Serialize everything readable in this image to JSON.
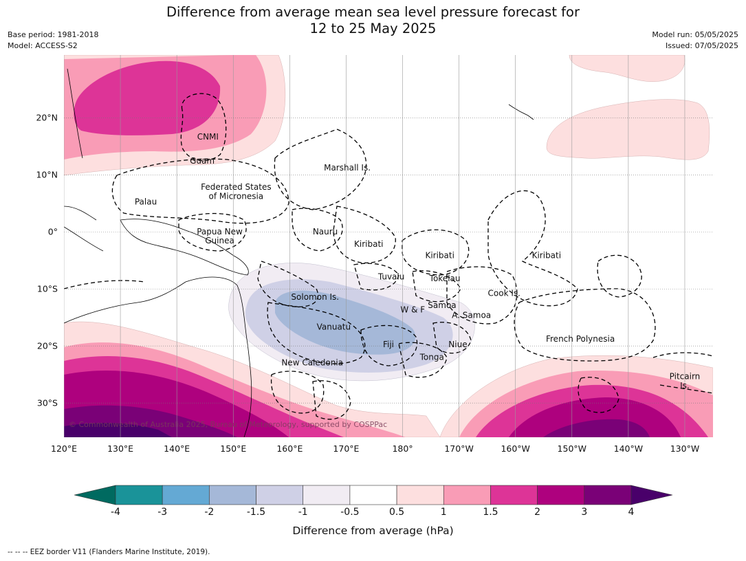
{
  "title": {
    "line1": "Difference from average mean sea level pressure forecast for",
    "line2": "12 to 25 May 2025"
  },
  "meta_left": {
    "base_period": "Base period: 1981-2018",
    "model": "Model: ACCESS-S2"
  },
  "meta_right": {
    "model_run": "Model run: 05/05/2025",
    "issued": "Issued: 07/05/2025"
  },
  "map_data": {
    "projection": "equirectangular, Pacific-centred",
    "lon_range": [
      120,
      235
    ],
    "lat_range": [
      -36,
      31
    ],
    "lon_ticks": [
      "120°E",
      "130°E",
      "140°E",
      "150°E",
      "160°E",
      "170°E",
      "180°",
      "170°W",
      "160°W",
      "150°W",
      "140°W",
      "130°W"
    ],
    "lat_ticks": [
      "20°N",
      "10°N",
      "0°",
      "10°S",
      "20°S",
      "30°S"
    ],
    "grid": true,
    "region_labels": [
      {
        "name": "CNMI",
        "lon": 145.5,
        "lat": 16.6
      },
      {
        "name": "Guam",
        "lon": 144.5,
        "lat": 12.4
      },
      {
        "name": "Marshall Is.",
        "lon": 170.2,
        "lat": 11.2
      },
      {
        "name": "Federated States",
        "lon": 150.5,
        "lat": 7.8
      },
      {
        "name": "of Micronesia",
        "lon": 150.5,
        "lat": 6.2
      },
      {
        "name": "Palau",
        "lon": 134.5,
        "lat": 5.2
      },
      {
        "name": "Papua New",
        "lon": 147.6,
        "lat": 0.0
      },
      {
        "name": "Guinea",
        "lon": 147.6,
        "lat": -1.6
      },
      {
        "name": "Nauru",
        "lon": 166.3,
        "lat": 0.0
      },
      {
        "name": "Kiribati",
        "lon": 174.0,
        "lat": -2.2
      },
      {
        "name": "Kiribati",
        "lon": 186.6,
        "lat": -4.2
      },
      {
        "name": "Kiribati",
        "lon": 205.5,
        "lat": -4.2
      },
      {
        "name": "Tuvalu",
        "lon": 178.0,
        "lat": -7.9
      },
      {
        "name": "Tokelau",
        "lon": 187.5,
        "lat": -8.2
      },
      {
        "name": "Cook Is.",
        "lon": 198.0,
        "lat": -10.8
      },
      {
        "name": "Solomon Is.",
        "lon": 164.5,
        "lat": -11.5
      },
      {
        "name": "W & F",
        "lon": 181.8,
        "lat": -13.7
      },
      {
        "name": "Samoa",
        "lon": 187.0,
        "lat": -12.9
      },
      {
        "name": "A. Samoa",
        "lon": 192.2,
        "lat": -14.7
      },
      {
        "name": "Vanuatu",
        "lon": 167.8,
        "lat": -16.7
      },
      {
        "name": "Fiji",
        "lon": 177.5,
        "lat": -19.8
      },
      {
        "name": "Niue",
        "lon": 189.8,
        "lat": -19.8
      },
      {
        "name": "Tonga",
        "lon": 185.2,
        "lat": -22.0
      },
      {
        "name": "French Polynesia",
        "lon": 211.5,
        "lat": -18.8
      },
      {
        "name": "New Caledonia",
        "lon": 164.0,
        "lat": -23.0
      },
      {
        "name": "Pitcairn",
        "lon": 230.0,
        "lat": -25.4
      },
      {
        "name": "Is.",
        "lon": 230.0,
        "lat": -27.0
      }
    ],
    "attribution": "© Commonwealth of Australia 2025, Bureau of Meteorology, supported by COSPPac",
    "anomaly_fields_hpa": [
      {
        "feature": "positive anomaly NW Pacific",
        "max_level": 2
      },
      {
        "feature": "negative anomaly Vanuatu–Fiji",
        "min_level": -2
      },
      {
        "feature": "positive anomaly Southern Ocean SW",
        "max_level": 4
      },
      {
        "feature": "positive anomaly Southern Ocean SE",
        "max_level": 4
      },
      {
        "feature": "positive anomaly NE Pacific",
        "max_level": 1
      }
    ]
  },
  "colorbar": {
    "tick_labels": [
      "-4",
      "-3",
      "-2",
      "-1.5",
      "-1",
      "-0.5",
      "0.5",
      "1",
      "1.5",
      "2",
      "3",
      "4"
    ],
    "colors": [
      "#006a60",
      "#1a9399",
      "#64a9d4",
      "#a5b8d8",
      "#cfd0e6",
      "#f1ecf3",
      "#ffffff",
      "#fddfdf",
      "#f99cb6",
      "#dd3497",
      "#ae017e",
      "#7a0177",
      "#49006a"
    ],
    "label": "Difference from average (hPa)"
  },
  "footnote": "--  --  -- EEZ border V11 (Flanders Marine Institute, 2019)."
}
